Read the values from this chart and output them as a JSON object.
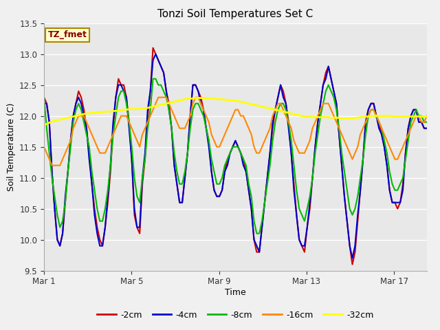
{
  "title": "Tonzi Soil Temperatures Set C",
  "xlabel": "Time",
  "ylabel": "Soil Temperature (C)",
  "ylim": [
    9.5,
    13.5
  ],
  "yticks": [
    9.5,
    10.0,
    10.5,
    11.0,
    11.5,
    12.0,
    12.5,
    13.0,
    13.5
  ],
  "xtick_labels": [
    "Mar 1",
    "Mar 5",
    "Mar 9",
    "Mar 13",
    "Mar 17"
  ],
  "xtick_positions": [
    0,
    4,
    8,
    12,
    16
  ],
  "annotation_text": "TZ_fmet",
  "line_colors": [
    "#cc0000",
    "#0000cc",
    "#00bb00",
    "#ff8800",
    "#ffff00"
  ],
  "line_labels": [
    "-2cm",
    "-4cm",
    "-8cm",
    "-16cm",
    "-32cm"
  ],
  "bg_color": "#e8e8e8",
  "fig_bg": "#f0f0f0",
  "n_points": 145,
  "t2cm": [
    12.3,
    12.2,
    11.9,
    11.1,
    10.5,
    10.0,
    9.9,
    10.1,
    10.6,
    11.1,
    11.6,
    12.0,
    12.2,
    12.4,
    12.3,
    12.1,
    11.8,
    11.4,
    10.9,
    10.5,
    10.2,
    10.0,
    9.9,
    10.2,
    10.6,
    11.1,
    11.8,
    12.3,
    12.6,
    12.5,
    12.5,
    12.3,
    11.9,
    11.3,
    10.4,
    10.2,
    10.1,
    10.9,
    11.3,
    12.0,
    12.4,
    13.1,
    13.0,
    12.9,
    12.8,
    12.7,
    12.4,
    12.2,
    11.8,
    11.2,
    10.9,
    10.6,
    10.6,
    11.0,
    11.4,
    12.0,
    12.5,
    12.5,
    12.4,
    12.3,
    12.1,
    11.8,
    11.6,
    11.1,
    10.8,
    10.7,
    10.7,
    10.8,
    11.1,
    11.3,
    11.4,
    11.5,
    11.6,
    11.5,
    11.4,
    11.3,
    11.1,
    10.8,
    10.5,
    10.0,
    9.8,
    9.8,
    10.2,
    10.6,
    11.0,
    11.4,
    11.8,
    12.1,
    12.3,
    12.5,
    12.4,
    12.2,
    11.9,
    11.4,
    10.9,
    10.4,
    10.0,
    9.9,
    9.8,
    10.2,
    10.5,
    11.0,
    11.5,
    11.9,
    12.2,
    12.5,
    12.7,
    12.8,
    12.6,
    12.4,
    12.2,
    11.7,
    11.2,
    10.7,
    10.3,
    9.9,
    9.6,
    9.8,
    10.3,
    10.8,
    11.3,
    11.9,
    12.1,
    12.2,
    12.2,
    12.0,
    11.9,
    11.7,
    11.5,
    11.2,
    10.8,
    10.6,
    10.6,
    10.5,
    10.6,
    10.9,
    11.4,
    11.8,
    12.0,
    12.1,
    12.1,
    11.9,
    11.9,
    11.8,
    11.8
  ],
  "t4cm": [
    12.2,
    12.2,
    11.9,
    11.1,
    10.5,
    10.0,
    9.9,
    10.1,
    10.7,
    11.1,
    11.6,
    12.0,
    12.2,
    12.3,
    12.2,
    12.0,
    11.8,
    11.3,
    10.9,
    10.4,
    10.1,
    9.9,
    9.9,
    10.2,
    10.7,
    11.2,
    11.9,
    12.3,
    12.5,
    12.5,
    12.4,
    12.3,
    11.8,
    11.3,
    10.5,
    10.2,
    10.2,
    11.0,
    11.4,
    12.1,
    12.4,
    12.9,
    13.0,
    12.9,
    12.8,
    12.7,
    12.4,
    12.1,
    11.8,
    11.2,
    10.9,
    10.6,
    10.6,
    11.0,
    11.4,
    12.0,
    12.5,
    12.5,
    12.4,
    12.2,
    12.1,
    11.8,
    11.5,
    11.1,
    10.8,
    10.7,
    10.7,
    10.8,
    11.1,
    11.2,
    11.4,
    11.5,
    11.6,
    11.5,
    11.4,
    11.2,
    11.1,
    10.8,
    10.5,
    10.0,
    9.9,
    9.8,
    10.2,
    10.6,
    11.0,
    11.4,
    11.9,
    12.1,
    12.3,
    12.5,
    12.3,
    12.2,
    11.8,
    11.4,
    10.8,
    10.4,
    10.0,
    9.9,
    9.9,
    10.2,
    10.6,
    11.0,
    11.5,
    11.9,
    12.2,
    12.5,
    12.6,
    12.8,
    12.6,
    12.4,
    12.2,
    11.7,
    11.2,
    10.7,
    10.3,
    9.9,
    9.7,
    9.9,
    10.4,
    10.8,
    11.3,
    11.9,
    12.1,
    12.2,
    12.2,
    12.0,
    11.8,
    11.7,
    11.5,
    11.2,
    10.8,
    10.6,
    10.6,
    10.6,
    10.6,
    10.8,
    11.4,
    11.8,
    12.0,
    12.1,
    12.1,
    11.9,
    11.9,
    11.8,
    11.8
  ],
  "t8cm": [
    12.3,
    11.8,
    11.4,
    11.0,
    10.7,
    10.4,
    10.2,
    10.3,
    10.6,
    11.1,
    11.5,
    11.9,
    12.1,
    12.2,
    12.1,
    11.9,
    11.7,
    11.5,
    11.1,
    10.8,
    10.5,
    10.3,
    10.3,
    10.5,
    10.8,
    11.2,
    11.7,
    12.0,
    12.3,
    12.4,
    12.4,
    12.2,
    11.9,
    11.5,
    11.0,
    10.7,
    10.6,
    11.0,
    11.3,
    11.8,
    12.1,
    12.6,
    12.6,
    12.5,
    12.5,
    12.4,
    12.3,
    12.1,
    11.8,
    11.4,
    11.1,
    10.9,
    10.9,
    11.1,
    11.4,
    11.8,
    12.1,
    12.2,
    12.2,
    12.1,
    12.0,
    11.8,
    11.6,
    11.3,
    11.1,
    10.9,
    10.9,
    11.0,
    11.2,
    11.3,
    11.4,
    11.5,
    11.5,
    11.5,
    11.4,
    11.3,
    11.2,
    10.9,
    10.7,
    10.3,
    10.1,
    10.1,
    10.3,
    10.6,
    10.9,
    11.2,
    11.6,
    11.9,
    12.1,
    12.2,
    12.2,
    12.1,
    11.9,
    11.6,
    11.2,
    10.8,
    10.5,
    10.4,
    10.3,
    10.5,
    10.7,
    11.0,
    11.4,
    11.7,
    12.0,
    12.2,
    12.4,
    12.5,
    12.4,
    12.3,
    12.1,
    11.8,
    11.4,
    11.1,
    10.8,
    10.5,
    10.4,
    10.5,
    10.7,
    11.0,
    11.3,
    11.7,
    12.0,
    12.1,
    12.1,
    12.0,
    11.9,
    11.8,
    11.6,
    11.4,
    11.1,
    10.9,
    10.8,
    10.8,
    10.9,
    11.0,
    11.3,
    11.6,
    11.9,
    12.0,
    12.1,
    12.0,
    12.0,
    11.9,
    11.9
  ],
  "t16cm": [
    11.5,
    11.4,
    11.3,
    11.2,
    11.2,
    11.2,
    11.2,
    11.3,
    11.4,
    11.5,
    11.6,
    11.8,
    11.9,
    12.0,
    12.0,
    12.0,
    11.9,
    11.8,
    11.7,
    11.6,
    11.5,
    11.4,
    11.4,
    11.4,
    11.5,
    11.6,
    11.7,
    11.8,
    11.9,
    12.0,
    12.0,
    12.0,
    11.9,
    11.8,
    11.7,
    11.6,
    11.5,
    11.7,
    11.8,
    11.9,
    12.0,
    12.1,
    12.2,
    12.3,
    12.3,
    12.3,
    12.3,
    12.2,
    12.1,
    12.0,
    11.9,
    11.8,
    11.8,
    11.8,
    11.9,
    12.0,
    12.2,
    12.3,
    12.3,
    12.2,
    12.1,
    12.0,
    11.9,
    11.7,
    11.6,
    11.5,
    11.5,
    11.6,
    11.7,
    11.8,
    11.9,
    12.0,
    12.1,
    12.1,
    12.0,
    12.0,
    11.9,
    11.8,
    11.7,
    11.5,
    11.4,
    11.4,
    11.5,
    11.6,
    11.7,
    11.8,
    12.0,
    12.1,
    12.2,
    12.2,
    12.1,
    12.0,
    11.9,
    11.8,
    11.6,
    11.5,
    11.4,
    11.4,
    11.4,
    11.5,
    11.6,
    11.8,
    11.9,
    12.0,
    12.1,
    12.2,
    12.2,
    12.2,
    12.1,
    12.0,
    11.9,
    11.8,
    11.7,
    11.6,
    11.5,
    11.4,
    11.3,
    11.4,
    11.5,
    11.7,
    11.8,
    11.9,
    12.0,
    12.1,
    12.1,
    12.0,
    11.9,
    11.8,
    11.7,
    11.6,
    11.5,
    11.4,
    11.3,
    11.3,
    11.4,
    11.5,
    11.6,
    11.7,
    11.8,
    11.9,
    12.0,
    12.0,
    11.9,
    11.9,
    12.0
  ],
  "t32cm": [
    11.85,
    11.87,
    11.89,
    11.91,
    11.92,
    11.93,
    11.94,
    11.95,
    11.96,
    11.97,
    11.98,
    11.99,
    12.0,
    12.01,
    12.02,
    12.03,
    12.04,
    12.04,
    12.05,
    12.05,
    12.06,
    12.06,
    12.06,
    12.07,
    12.07,
    12.07,
    12.08,
    12.08,
    12.09,
    12.09,
    12.1,
    12.1,
    12.11,
    12.11,
    12.11,
    12.11,
    12.11,
    12.12,
    12.12,
    12.13,
    12.14,
    12.15,
    12.16,
    12.17,
    12.18,
    12.19,
    12.2,
    12.21,
    12.22,
    12.23,
    12.24,
    12.25,
    12.26,
    12.27,
    12.28,
    12.28,
    12.28,
    12.29,
    12.29,
    12.29,
    12.29,
    12.29,
    12.28,
    12.28,
    12.28,
    12.27,
    12.27,
    12.27,
    12.26,
    12.26,
    12.25,
    12.25,
    12.25,
    12.24,
    12.23,
    12.22,
    12.21,
    12.2,
    12.19,
    12.18,
    12.17,
    12.16,
    12.15,
    12.14,
    12.13,
    12.12,
    12.11,
    12.1,
    12.09,
    12.08,
    12.07,
    12.06,
    12.05,
    12.04,
    12.03,
    12.02,
    12.01,
    12.0,
    11.99,
    11.99,
    11.99,
    11.98,
    11.98,
    11.98,
    11.98,
    11.98,
    11.98,
    11.98,
    11.97,
    11.97,
    11.97,
    11.97,
    11.96,
    11.96,
    11.96,
    11.96,
    11.96,
    11.97,
    11.97,
    11.98,
    11.98,
    11.99,
    11.99,
    12.0,
    12.0,
    12.0,
    12.0,
    12.0,
    12.0,
    12.0,
    12.0,
    11.99,
    11.99,
    11.99,
    11.99,
    11.99,
    11.99,
    11.99,
    11.99,
    11.99,
    11.99,
    11.99,
    11.99,
    11.99,
    11.99
  ]
}
